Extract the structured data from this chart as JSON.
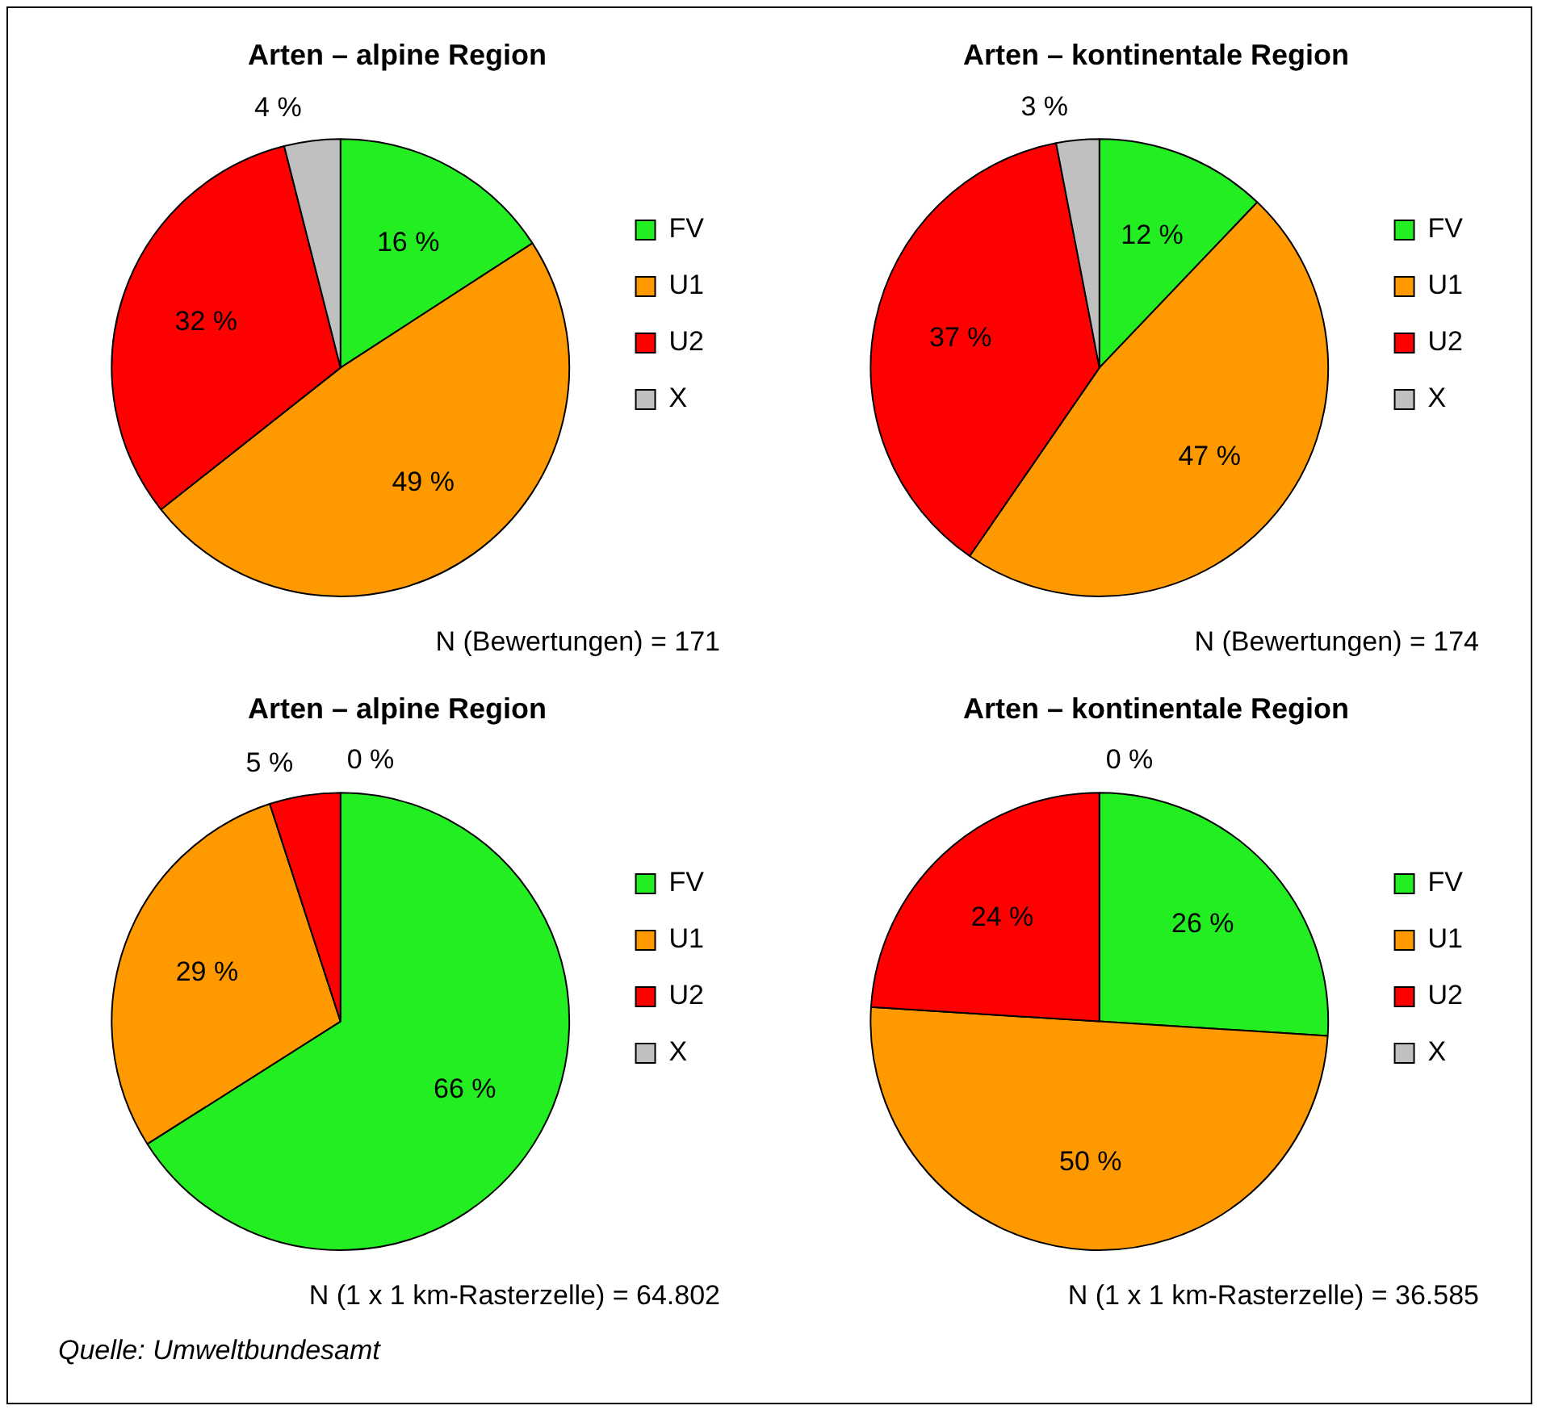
{
  "chart_data": [
    {
      "type": "pie",
      "title": "Arten – alpine Region",
      "categories": [
        "FV",
        "U1",
        "U2",
        "X"
      ],
      "values": [
        16,
        49,
        32,
        4
      ],
      "value_labels": [
        "16 %",
        "49 %",
        "32 %",
        "4 %"
      ],
      "colors": [
        "#22ee22",
        "#ff9900",
        "#ff0000",
        "#c0c0c0"
      ],
      "legend": "right",
      "annotations": [
        "N (Bewertungen) = 171"
      ]
    },
    {
      "type": "pie",
      "title": "Arten – kontinentale Region",
      "categories": [
        "FV",
        "U1",
        "U2",
        "X"
      ],
      "values": [
        12,
        47,
        37,
        3
      ],
      "value_labels": [
        "12 %",
        "47 %",
        "37 %",
        "3 %"
      ],
      "colors": [
        "#22ee22",
        "#ff9900",
        "#ff0000",
        "#c0c0c0"
      ],
      "legend": "right",
      "annotations": [
        "N (Bewertungen) = 174"
      ]
    },
    {
      "type": "pie",
      "title": "Arten – alpine Region",
      "categories": [
        "FV",
        "U1",
        "U2",
        "X"
      ],
      "values": [
        66,
        29,
        5,
        0
      ],
      "value_labels": [
        "66 %",
        "29 %",
        "5 %",
        "0 %"
      ],
      "colors": [
        "#22ee22",
        "#ff9900",
        "#ff0000",
        "#c0c0c0"
      ],
      "legend": "right",
      "annotations": [
        "N (1 x 1 km-Rasterzelle) = 64.802",
        "Quelle: Umweltbundesamt"
      ]
    },
    {
      "type": "pie",
      "title": "Arten – kontinentale Region",
      "categories": [
        "FV",
        "U1",
        "U2",
        "X"
      ],
      "values": [
        26,
        50,
        24,
        0
      ],
      "value_labels": [
        "26 %",
        "50 %",
        "24 %",
        "0 %"
      ],
      "colors": [
        "#22ee22",
        "#ff9900",
        "#ff0000",
        "#c0c0c0"
      ],
      "legend": "right",
      "annotations": [
        "N (1 x 1 km-Rasterzelle) = 36.585"
      ]
    }
  ]
}
